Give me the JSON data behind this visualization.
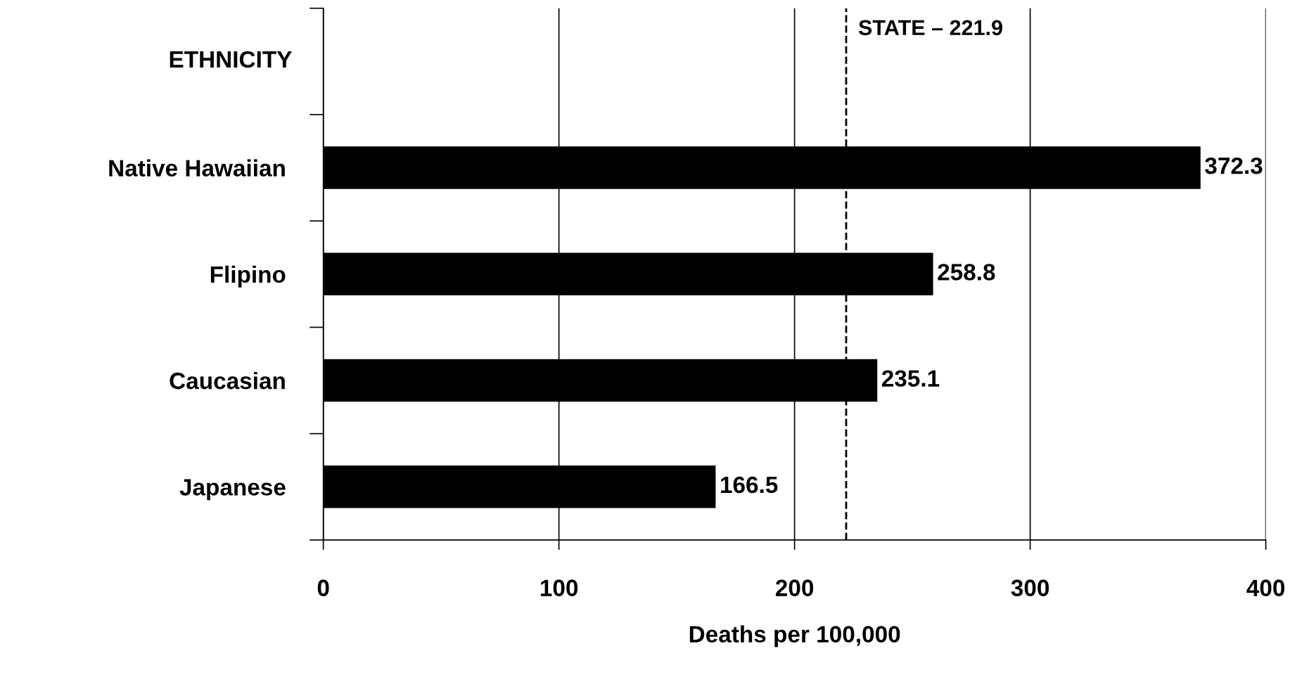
{
  "chart_data": {
    "type": "bar",
    "orientation": "horizontal",
    "ylabel": "ETHNICITY",
    "xlabel": "Deaths per 100,000",
    "categories": [
      null,
      "Native Hawaiian",
      "Flipino",
      "Caucasian",
      "Japanese"
    ],
    "values": [
      null,
      372.3,
      258.8,
      235.1,
      166.5
    ],
    "color": "#000000",
    "xlim": [
      0,
      400
    ],
    "xticks": [
      0,
      100,
      200,
      300,
      400
    ],
    "grid": "x",
    "data_labels": true,
    "ref_lines": [
      {
        "axis": "x",
        "value": 221.9,
        "label": "STATE – 221.9",
        "color": "#000000",
        "line_style": "dashed"
      }
    ]
  }
}
